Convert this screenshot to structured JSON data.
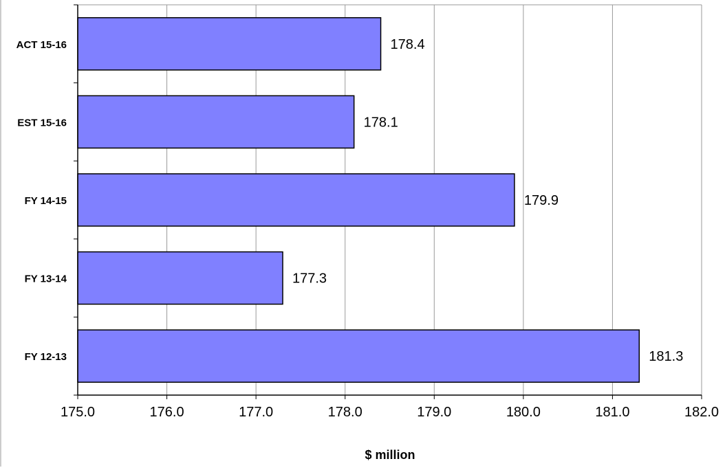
{
  "chart_data": {
    "type": "bar",
    "orientation": "horizontal",
    "categories": [
      "ACT 15-16",
      "EST 15-16",
      "FY 14-15",
      "FY 13-14",
      "FY 12-13"
    ],
    "values": [
      178.4,
      178.1,
      179.9,
      177.3,
      181.3
    ],
    "value_labels": [
      "178.4",
      "178.1",
      "179.9",
      "177.3",
      "181.3"
    ],
    "xlabel": "$ million",
    "xlim": [
      175.0,
      182.0
    ],
    "xticks": [
      175.0,
      176.0,
      177.0,
      178.0,
      179.0,
      180.0,
      181.0,
      182.0
    ],
    "xtick_labels": [
      "175.0",
      "176.0",
      "177.0",
      "178.0",
      "179.0",
      "180.0",
      "181.0",
      "182.0"
    ],
    "grid": "vertical",
    "legend": "none"
  },
  "colors": {
    "bar_fill": "#8080ff",
    "bar_stroke": "#000000",
    "grid": "#9a9a9a",
    "axis": "#000000",
    "frame": "#9a9a9a"
  }
}
